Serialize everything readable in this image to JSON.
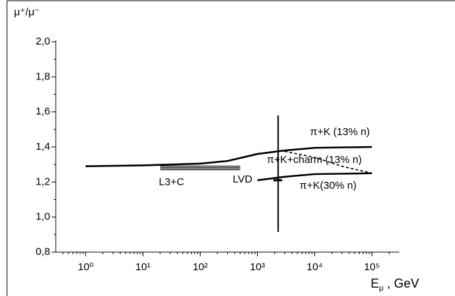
{
  "chart_data": {
    "type": "line",
    "y_label": "μ⁺/μ⁻",
    "x_label": "E",
    "x_label_sub": "μ",
    "x_label_unit": " , GeV",
    "log_x": true,
    "xlim": [
      0.3,
      300000
    ],
    "xticks": [
      {
        "value": 1,
        "label": "10⁰"
      },
      {
        "value": 10,
        "label": "10¹"
      },
      {
        "value": 100,
        "label": "10²"
      },
      {
        "value": 1000,
        "label": "10³"
      },
      {
        "value": 10000,
        "label": "10⁴"
      },
      {
        "value": 100000,
        "label": "10⁵"
      }
    ],
    "ylim": [
      0.8,
      2.0
    ],
    "yticks": [
      {
        "value": 0.8,
        "label": "0,8"
      },
      {
        "value": 1.0,
        "label": "1,0"
      },
      {
        "value": 1.2,
        "label": "1,2"
      },
      {
        "value": 1.4,
        "label": "1,4"
      },
      {
        "value": 1.6,
        "label": "1,6"
      },
      {
        "value": 1.8,
        "label": "1,8"
      },
      {
        "value": 2.0,
        "label": "2,0"
      }
    ],
    "series": [
      {
        "name": "π+K  (13% n)",
        "color": "#000000",
        "style": "solid",
        "x": [
          1,
          10,
          100,
          300,
          1000,
          3000,
          10000,
          100000
        ],
        "values": [
          1.29,
          1.295,
          1.305,
          1.32,
          1.36,
          1.38,
          1.395,
          1.4
        ]
      },
      {
        "name": "π+K+charm (13% n)",
        "color": "#000000",
        "style": "dashed",
        "x": [
          3000,
          10000,
          30000,
          100000
        ],
        "values": [
          1.375,
          1.34,
          1.29,
          1.25
        ]
      },
      {
        "name": "π+K(30% n)",
        "color": "#000000",
        "style": "solid",
        "x": [
          1000,
          3000,
          10000,
          100000
        ],
        "values": [
          1.21,
          1.23,
          1.245,
          1.25
        ]
      }
    ],
    "band": {
      "name": "L3+C",
      "x": [
        20,
        500
      ],
      "levels": [
        1.27,
        1.277,
        1.284,
        1.291
      ]
    },
    "point": {
      "name": "LVD",
      "x": 2300,
      "value": 1.21,
      "error_low": 0.295,
      "error_high": 0.37,
      "x_range": [
        1900,
        2700
      ]
    }
  }
}
